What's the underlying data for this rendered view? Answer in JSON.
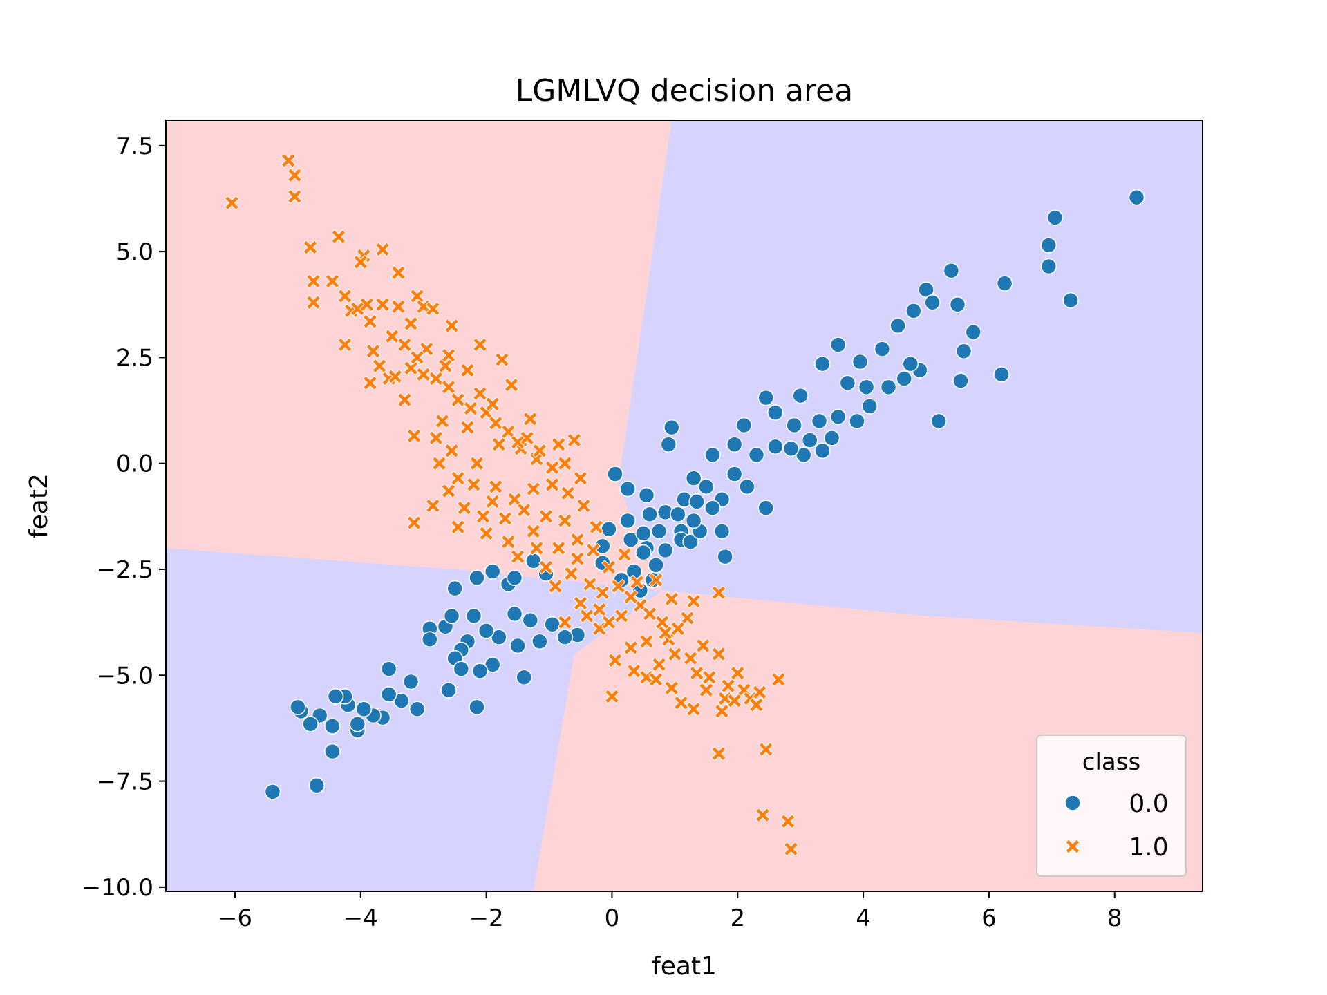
{
  "chart_data": {
    "type": "scatter",
    "title": "LGMLVQ decision area",
    "xlabel": "feat1",
    "ylabel": "feat2",
    "xlim": [
      -7.1,
      9.4
    ],
    "ylim": [
      -10.1,
      8.1
    ],
    "xticks": [
      -6,
      -4,
      -2,
      0,
      2,
      4,
      6,
      8
    ],
    "xtick_labels": [
      "−6",
      "−4",
      "−2",
      "0",
      "2",
      "4",
      "6",
      "8"
    ],
    "yticks": [
      7.5,
      5.0,
      2.5,
      0.0,
      -2.5,
      -5.0,
      -7.5,
      -10.0
    ],
    "ytick_labels": [
      "7.5",
      "5.0",
      "2.5",
      "0.0",
      "−2.5",
      "−5.0",
      "−7.5",
      "−10.0"
    ],
    "grid": false,
    "legend": {
      "title": "class",
      "placement": "bottom-right"
    },
    "decision_regions": {
      "class_0_color": "#d6d4fe",
      "class_1_color": "#fed4d6",
      "boundary_1": [
        [
          0.95,
          8.1
        ],
        [
          0.55,
          4.0
        ],
        [
          0.1,
          -0.5
        ],
        [
          -0.6,
          -4.5
        ],
        [
          -1.25,
          -10.1
        ]
      ],
      "boundary_2": [
        [
          -7.1,
          -2.0
        ],
        [
          -2.5,
          -2.5
        ],
        [
          0.8,
          -3.0
        ],
        [
          5.0,
          -3.6
        ],
        [
          9.4,
          -4.0
        ]
      ],
      "quadrant_classes": {
        "upper_left": "1.0",
        "upper_right": "0.0",
        "lower_left": "0.0",
        "lower_right": "1.0"
      }
    },
    "series": [
      {
        "name": "0.0",
        "marker": "circle",
        "color": "#1f77b4",
        "points": [
          [
            8.35,
            6.28
          ],
          [
            7.05,
            5.8
          ],
          [
            6.95,
            5.15
          ],
          [
            6.95,
            4.65
          ],
          [
            7.3,
            3.85
          ],
          [
            6.25,
            4.25
          ],
          [
            6.2,
            2.1
          ],
          [
            5.75,
            3.1
          ],
          [
            5.5,
            3.75
          ],
          [
            5.4,
            4.55
          ],
          [
            5.0,
            4.1
          ],
          [
            5.6,
            2.65
          ],
          [
            5.55,
            1.95
          ],
          [
            5.2,
            1.0
          ],
          [
            5.1,
            3.8
          ],
          [
            4.8,
            3.6
          ],
          [
            4.55,
            3.25
          ],
          [
            4.9,
            2.2
          ],
          [
            4.3,
            2.7
          ],
          [
            3.95,
            2.4
          ],
          [
            3.6,
            2.8
          ],
          [
            3.35,
            2.35
          ],
          [
            2.45,
            1.55
          ],
          [
            2.6,
            1.2
          ],
          [
            3.0,
            1.6
          ],
          [
            3.3,
            1.0
          ],
          [
            3.5,
            0.6
          ],
          [
            3.05,
            0.2
          ],
          [
            3.35,
            0.3
          ],
          [
            2.1,
            0.9
          ],
          [
            1.95,
            0.45
          ],
          [
            1.6,
            0.2
          ],
          [
            1.3,
            -0.35
          ],
          [
            1.75,
            -0.85
          ],
          [
            1.15,
            -0.85
          ],
          [
            0.95,
            0.85
          ],
          [
            0.9,
            0.45
          ],
          [
            0.55,
            -0.75
          ],
          [
            0.05,
            -0.25
          ],
          [
            0.25,
            -1.35
          ],
          [
            0.55,
            -2.0
          ],
          [
            0.35,
            -2.55
          ],
          [
            0.65,
            -2.75
          ],
          [
            -0.15,
            -1.95
          ],
          [
            0.15,
            -2.75
          ],
          [
            1.1,
            -1.6
          ],
          [
            1.75,
            -1.6
          ],
          [
            1.8,
            -2.2
          ],
          [
            2.45,
            -1.05
          ],
          [
            0.7,
            -2.4
          ],
          [
            0.45,
            -3.0
          ],
          [
            -0.55,
            -4.05
          ],
          [
            -0.95,
            -3.8
          ],
          [
            -1.3,
            -3.7
          ],
          [
            -1.55,
            -3.55
          ],
          [
            -1.65,
            -2.85
          ],
          [
            -1.25,
            -2.3
          ],
          [
            -1.05,
            -2.6
          ],
          [
            -1.8,
            -4.1
          ],
          [
            -1.5,
            -4.3
          ],
          [
            -1.15,
            -4.2
          ],
          [
            -1.55,
            -2.7
          ],
          [
            -1.9,
            -2.55
          ],
          [
            -2.15,
            -2.7
          ],
          [
            -1.9,
            -4.75
          ],
          [
            -2.0,
            -3.95
          ],
          [
            -2.2,
            -3.6
          ],
          [
            -2.3,
            -4.2
          ],
          [
            -2.1,
            -4.9
          ],
          [
            -2.5,
            -2.95
          ],
          [
            -2.4,
            -4.4
          ],
          [
            -2.65,
            -3.85
          ],
          [
            -2.9,
            -3.9
          ],
          [
            -2.55,
            -3.6
          ],
          [
            -2.5,
            -4.6
          ],
          [
            -2.4,
            -4.85
          ],
          [
            -2.15,
            -5.75
          ],
          [
            -2.6,
            -5.35
          ],
          [
            -3.1,
            -5.8
          ],
          [
            -3.2,
            -5.15
          ],
          [
            -3.35,
            -5.6
          ],
          [
            -3.55,
            -5.45
          ],
          [
            -3.55,
            -4.85
          ],
          [
            -3.65,
            -6.0
          ],
          [
            -3.8,
            -5.95
          ],
          [
            -3.95,
            -5.8
          ],
          [
            -4.05,
            -6.3
          ],
          [
            -4.05,
            -6.15
          ],
          [
            -4.2,
            -5.7
          ],
          [
            -4.25,
            -5.5
          ],
          [
            -4.4,
            -5.5
          ],
          [
            -4.45,
            -6.2
          ],
          [
            -4.65,
            -5.95
          ],
          [
            -4.8,
            -6.15
          ],
          [
            -4.95,
            -5.85
          ],
          [
            -5.0,
            -5.75
          ],
          [
            -4.45,
            -6.8
          ],
          [
            -4.7,
            -7.6
          ],
          [
            -5.4,
            -7.75
          ],
          [
            -1.4,
            -5.05
          ],
          [
            -2.9,
            -4.15
          ],
          [
            -0.75,
            -4.1
          ],
          [
            1.1,
            -1.8
          ],
          [
            1.25,
            -1.85
          ],
          [
            1.4,
            -1.6
          ],
          [
            1.35,
            -0.9
          ],
          [
            1.5,
            -0.55
          ],
          [
            1.6,
            -1.05
          ],
          [
            1.95,
            -0.25
          ],
          [
            2.15,
            -0.55
          ],
          [
            2.3,
            0.2
          ],
          [
            2.6,
            0.4
          ],
          [
            2.9,
            0.9
          ],
          [
            2.85,
            0.35
          ],
          [
            3.15,
            0.55
          ],
          [
            3.6,
            1.1
          ],
          [
            3.9,
            1.0
          ],
          [
            4.1,
            1.35
          ],
          [
            4.4,
            1.8
          ],
          [
            4.65,
            2.0
          ],
          [
            4.75,
            2.35
          ],
          [
            4.05,
            1.8
          ],
          [
            3.75,
            1.9
          ],
          [
            0.3,
            -1.8
          ],
          [
            0.5,
            -2.1
          ],
          [
            0.75,
            -1.6
          ],
          [
            0.85,
            -1.15
          ],
          [
            0.6,
            -1.2
          ],
          [
            0.85,
            -2.05
          ],
          [
            1.05,
            -1.2
          ],
          [
            1.3,
            -1.35
          ],
          [
            0.25,
            -0.6
          ],
          [
            0.5,
            -1.65
          ],
          [
            -0.05,
            -1.55
          ],
          [
            -0.15,
            -2.35
          ]
        ]
      },
      {
        "name": "1.0",
        "marker": "x",
        "color": "#ff7f0e",
        "points": [
          [
            -6.05,
            6.15
          ],
          [
            -5.15,
            7.15
          ],
          [
            -5.05,
            6.8
          ],
          [
            -5.05,
            6.3
          ],
          [
            -4.35,
            5.35
          ],
          [
            -4.8,
            5.1
          ],
          [
            -3.65,
            5.05
          ],
          [
            -3.95,
            4.9
          ],
          [
            -4.0,
            4.75
          ],
          [
            -3.4,
            4.5
          ],
          [
            -4.75,
            4.3
          ],
          [
            -4.75,
            3.8
          ],
          [
            -4.45,
            4.3
          ],
          [
            -4.25,
            3.95
          ],
          [
            -4.15,
            3.6
          ],
          [
            -4.05,
            3.65
          ],
          [
            -3.9,
            3.75
          ],
          [
            -3.85,
            3.35
          ],
          [
            -3.65,
            3.75
          ],
          [
            -3.4,
            3.7
          ],
          [
            -3.1,
            3.95
          ],
          [
            -3.0,
            3.7
          ],
          [
            -2.85,
            3.65
          ],
          [
            -2.55,
            3.25
          ],
          [
            -4.25,
            2.8
          ],
          [
            -3.8,
            2.65
          ],
          [
            -3.85,
            1.9
          ],
          [
            -3.55,
            2.0
          ],
          [
            -3.2,
            2.25
          ],
          [
            -2.95,
            2.7
          ],
          [
            -2.65,
            2.3
          ],
          [
            -2.1,
            2.8
          ],
          [
            -1.75,
            2.45
          ],
          [
            -1.6,
            1.85
          ],
          [
            -1.3,
            1.05
          ],
          [
            -2.0,
            1.2
          ],
          [
            -2.3,
            0.85
          ],
          [
            -2.8,
            0.6
          ],
          [
            -3.15,
            0.65
          ],
          [
            -2.75,
            0.0
          ],
          [
            -2.45,
            -0.35
          ],
          [
            -2.15,
            0.0
          ],
          [
            -1.8,
            0.45
          ],
          [
            -1.45,
            0.35
          ],
          [
            -1.2,
            0.1
          ],
          [
            -0.85,
            0.45
          ],
          [
            -0.6,
            0.55
          ],
          [
            -0.75,
            0.0
          ],
          [
            -0.5,
            -0.35
          ],
          [
            -0.95,
            -0.5
          ],
          [
            -1.25,
            -0.6
          ],
          [
            -1.55,
            -0.85
          ],
          [
            -1.85,
            -0.55
          ],
          [
            -2.05,
            -1.25
          ],
          [
            -2.35,
            -1.05
          ],
          [
            -2.6,
            -0.65
          ],
          [
            -2.85,
            -1.0
          ],
          [
            -3.15,
            -1.4
          ],
          [
            -2.45,
            -1.5
          ],
          [
            -2.0,
            -1.65
          ],
          [
            -1.65,
            -1.85
          ],
          [
            -1.5,
            -2.2
          ],
          [
            -1.25,
            -1.6
          ],
          [
            -1.05,
            -1.25
          ],
          [
            -0.75,
            -1.35
          ],
          [
            -0.55,
            -1.8
          ],
          [
            -0.3,
            -2.05
          ],
          [
            -0.85,
            -2.0
          ],
          [
            -1.05,
            -2.45
          ],
          [
            -0.65,
            -2.6
          ],
          [
            -0.35,
            -2.85
          ],
          [
            -0.05,
            -2.45
          ],
          [
            0.2,
            -2.15
          ],
          [
            0.4,
            -2.8
          ],
          [
            0.7,
            -2.75
          ],
          [
            0.95,
            -3.2
          ],
          [
            1.3,
            -3.25
          ],
          [
            1.7,
            -3.05
          ],
          [
            -0.2,
            -3.45
          ],
          [
            -0.5,
            -3.3
          ],
          [
            -0.75,
            -3.75
          ],
          [
            -0.2,
            -3.9
          ],
          [
            0.15,
            -3.6
          ],
          [
            0.45,
            -3.35
          ],
          [
            0.8,
            -3.75
          ],
          [
            1.2,
            -3.65
          ],
          [
            0.55,
            -4.2
          ],
          [
            0.9,
            -4.15
          ],
          [
            1.0,
            -4.5
          ],
          [
            0.3,
            -4.35
          ],
          [
            0.05,
            -4.65
          ],
          [
            0.35,
            -4.9
          ],
          [
            0.55,
            -5.05
          ],
          [
            0.75,
            -4.75
          ],
          [
            0.7,
            -5.1
          ],
          [
            1.25,
            -4.6
          ],
          [
            1.35,
            -4.95
          ],
          [
            1.7,
            -4.5
          ],
          [
            1.55,
            -5.05
          ],
          [
            1.85,
            -5.25
          ],
          [
            2.1,
            -5.35
          ],
          [
            2.2,
            -5.55
          ],
          [
            2.35,
            -5.4
          ],
          [
            2.65,
            -5.1
          ],
          [
            1.8,
            -5.55
          ],
          [
            1.95,
            -5.6
          ],
          [
            2.3,
            -5.7
          ],
          [
            1.75,
            -5.85
          ],
          [
            1.3,
            -5.8
          ],
          [
            1.1,
            -5.65
          ],
          [
            0.0,
            -5.5
          ],
          [
            1.7,
            -6.85
          ],
          [
            2.45,
            -6.75
          ],
          [
            2.4,
            -8.3
          ],
          [
            2.8,
            -8.45
          ],
          [
            2.85,
            -9.1
          ],
          [
            -3.5,
            3.0
          ],
          [
            -3.3,
            2.8
          ],
          [
            -3.1,
            2.5
          ],
          [
            -3.0,
            2.1
          ],
          [
            -2.8,
            2.0
          ],
          [
            -2.6,
            1.8
          ],
          [
            -2.45,
            1.5
          ],
          [
            -2.25,
            1.3
          ],
          [
            -2.1,
            1.65
          ],
          [
            -1.9,
            1.4
          ],
          [
            -1.85,
            0.95
          ],
          [
            -1.65,
            0.75
          ],
          [
            -1.5,
            0.5
          ],
          [
            -1.35,
            0.6
          ],
          [
            -1.15,
            0.3
          ],
          [
            -0.95,
            -0.1
          ],
          [
            -0.7,
            -0.7
          ],
          [
            -0.45,
            -1.0
          ],
          [
            -0.25,
            -1.5
          ],
          [
            -1.4,
            -1.1
          ],
          [
            -1.7,
            -1.3
          ],
          [
            -1.9,
            -0.9
          ],
          [
            -2.2,
            -0.5
          ],
          [
            -2.55,
            0.3
          ],
          [
            -2.7,
            1.0
          ],
          [
            -3.3,
            1.5
          ],
          [
            -3.45,
            2.05
          ],
          [
            -3.7,
            2.3
          ],
          [
            -3.2,
            3.3
          ],
          [
            -2.6,
            2.55
          ],
          [
            -2.3,
            2.2
          ],
          [
            -1.2,
            -2.0
          ],
          [
            -0.9,
            -2.9
          ],
          [
            -0.55,
            -2.25
          ],
          [
            -0.15,
            -3.05
          ],
          [
            0.1,
            -2.9
          ],
          [
            0.3,
            -3.15
          ],
          [
            0.6,
            -3.55
          ],
          [
            0.85,
            -4.0
          ],
          [
            1.05,
            -3.9
          ],
          [
            -0.4,
            -3.6
          ],
          [
            -0.05,
            -3.75
          ],
          [
            1.45,
            -4.3
          ],
          [
            2.0,
            -4.95
          ],
          [
            1.5,
            -5.35
          ],
          [
            0.95,
            -5.3
          ]
        ]
      }
    ]
  }
}
